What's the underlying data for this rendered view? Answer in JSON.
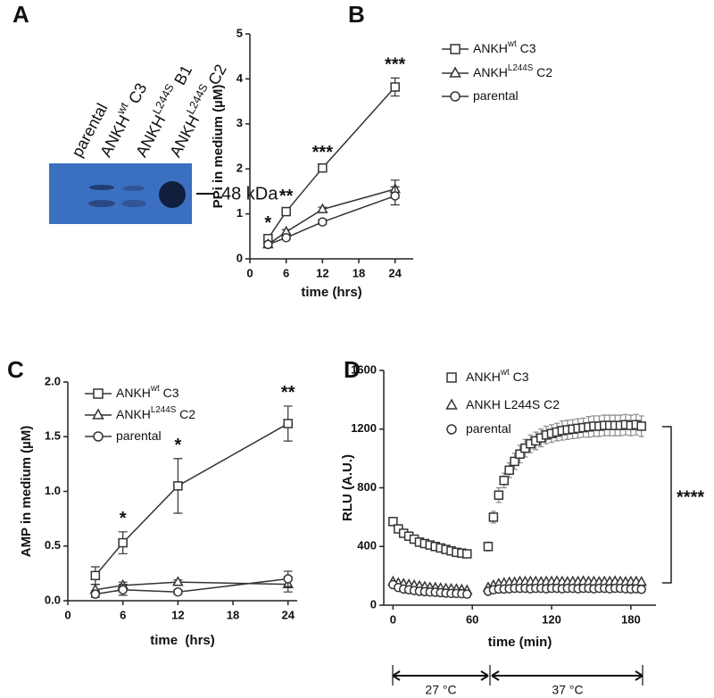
{
  "blot": {
    "panel": "A",
    "lanes": [
      [
        "parental"
      ],
      [
        "ANKH",
        "wt",
        " C3"
      ],
      [
        "ANKH",
        "L244S",
        " B1"
      ],
      [
        "ANKH",
        "L244S",
        " C2"
      ]
    ],
    "size_label": "48 kDa"
  },
  "chart_data": [
    {
      "panel": "B",
      "type": "line",
      "xlabel": "time (hrs)",
      "ylabel": "PPi in medium (µM)",
      "x": [
        3,
        6,
        12,
        24
      ],
      "xlim": [
        0,
        27
      ],
      "xticks": [
        0,
        6,
        12,
        18,
        24
      ],
      "ylim": [
        0,
        5
      ],
      "yticks": [
        0,
        1,
        2,
        3,
        4,
        5
      ],
      "series": [
        {
          "name": [
            "ANKH",
            "wt",
            " C3"
          ],
          "marker": "square",
          "color": "#333333",
          "values": [
            0.45,
            1.05,
            2.02,
            3.82
          ],
          "errors": [
            0.05,
            0.05,
            0.05,
            0.2
          ]
        },
        {
          "name": [
            "ANKH",
            "L244S",
            " C2"
          ],
          "marker": "triangle",
          "color": "#333333",
          "values": [
            0.32,
            0.6,
            1.1,
            1.55
          ],
          "errors": [
            0.03,
            0.05,
            0.05,
            0.2
          ]
        },
        {
          "name": [
            "parental"
          ],
          "marker": "circle",
          "color": "#333333",
          "values": [
            0.32,
            0.47,
            0.82,
            1.4
          ],
          "errors": [
            0.03,
            0.04,
            0.05,
            0.2
          ]
        }
      ],
      "annotations": [
        {
          "text": "*",
          "x": 3
        },
        {
          "text": "**",
          "x": 6
        },
        {
          "text": "***",
          "x": 12
        },
        {
          "text": "***",
          "x": 24
        }
      ]
    },
    {
      "panel": "C",
      "type": "line",
      "xlabel": "time  (hrs)",
      "ylabel": "AMP in medium (µM)",
      "x": [
        3,
        6,
        12,
        24
      ],
      "xlim": [
        0,
        25
      ],
      "xticks": [
        0,
        6,
        12,
        18,
        24
      ],
      "ylim": [
        0,
        2
      ],
      "yticks": [
        {
          "value": 0,
          "label": "0.0"
        },
        {
          "value": 0.5,
          "label": "0.5"
        },
        {
          "value": 1,
          "label": "1.0"
        },
        {
          "value": 1.5,
          "label": "1.5"
        },
        {
          "value": 2,
          "label": "2.0"
        }
      ],
      "series": [
        {
          "name": [
            "ANKH",
            "wt",
            " C3"
          ],
          "marker": "square",
          "color": "#333333",
          "values": [
            0.23,
            0.53,
            1.05,
            1.62
          ],
          "errors": [
            0.08,
            0.1,
            0.25,
            0.16
          ]
        },
        {
          "name": [
            "ANKH",
            "L244S",
            " C2"
          ],
          "marker": "triangle",
          "color": "#333333",
          "values": [
            0.1,
            0.14,
            0.17,
            0.15
          ],
          "errors": [
            0.05,
            0.03,
            0.02,
            0.07
          ]
        },
        {
          "name": [
            "parental"
          ],
          "marker": "circle",
          "color": "#333333",
          "values": [
            0.06,
            0.1,
            0.08,
            0.2
          ],
          "errors": [
            0.03,
            0.05,
            0.02,
            0.07
          ]
        }
      ],
      "annotations": [
        {
          "text": "*",
          "x": 6
        },
        {
          "text": "*",
          "x": 12
        },
        {
          "text": "**",
          "x": 24
        }
      ]
    },
    {
      "panel": "D",
      "type": "scatter",
      "xlabel": "time (min)",
      "ylabel": "RLU (A.U.)",
      "x": [
        0,
        4,
        8,
        12,
        16,
        20,
        24,
        28,
        32,
        36,
        40,
        44,
        48,
        52,
        56,
        72,
        76,
        80,
        84,
        88,
        92,
        96,
        100,
        104,
        108,
        112,
        116,
        120,
        124,
        128,
        132,
        136,
        140,
        144,
        148,
        152,
        156,
        160,
        164,
        168,
        172,
        176,
        180,
        184,
        188
      ],
      "xlim": [
        -7,
        199
      ],
      "xticks": [
        0,
        60,
        120,
        180
      ],
      "ylim": [
        0,
        1600
      ],
      "yticks": [
        0,
        400,
        800,
        1200,
        1600
      ],
      "series": [
        {
          "name": [
            "ANKH",
            "wt",
            " C3"
          ],
          "marker": "square",
          "color": "#333333",
          "values": [
            570,
            520,
            490,
            470,
            450,
            430,
            420,
            410,
            400,
            390,
            380,
            370,
            360,
            355,
            350,
            400,
            600,
            750,
            850,
            920,
            980,
            1030,
            1070,
            1100,
            1120,
            1140,
            1160,
            1170,
            1180,
            1190,
            1195,
            1200,
            1205,
            1210,
            1215,
            1220,
            1220,
            1225,
            1225,
            1225,
            1225,
            1230,
            1225,
            1230,
            1220
          ],
          "errors": [
            25,
            25,
            25,
            25,
            25,
            25,
            25,
            25,
            25,
            25,
            25,
            25,
            25,
            25,
            25,
            30,
            40,
            50,
            50,
            50,
            55,
            60,
            60,
            60,
            60,
            60,
            60,
            60,
            60,
            65,
            65,
            65,
            65,
            65,
            70,
            70,
            70,
            70,
            70,
            70,
            70,
            70,
            70,
            70,
            70
          ]
        },
        {
          "name": [
            "ANKH L244S C2"
          ],
          "marker": "triangle",
          "color": "#333333",
          "values": [
            160,
            150,
            145,
            140,
            135,
            130,
            125,
            120,
            118,
            115,
            112,
            110,
            108,
            105,
            100,
            120,
            135,
            145,
            150,
            155,
            155,
            160,
            160,
            160,
            160,
            158,
            160,
            160,
            162,
            160,
            158,
            160,
            160,
            162,
            160,
            160,
            158,
            160,
            160,
            162,
            160,
            158,
            160,
            160,
            158
          ]
        },
        {
          "name": [
            "parental"
          ],
          "marker": "circle",
          "color": "#333333",
          "values": [
            140,
            120,
            110,
            105,
            100,
            95,
            92,
            90,
            88,
            85,
            82,
            80,
            80,
            78,
            75,
            95,
            105,
            110,
            110,
            112,
            115,
            115,
            115,
            112,
            115,
            115,
            112,
            115,
            115,
            112,
            115,
            115,
            112,
            115,
            115,
            112,
            115,
            115,
            112,
            115,
            115,
            112,
            110,
            112,
            108
          ]
        }
      ],
      "significance": "****",
      "phases": [
        "27 °C",
        "37 °C"
      ]
    }
  ]
}
